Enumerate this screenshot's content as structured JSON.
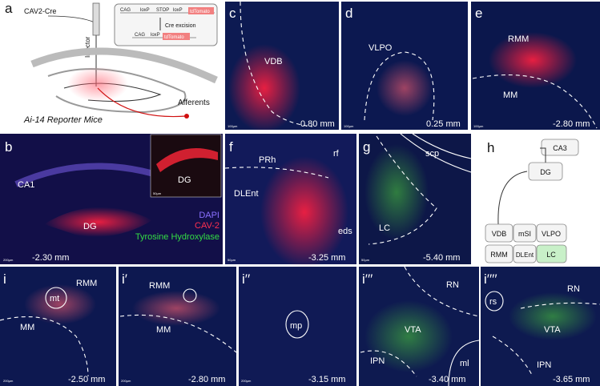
{
  "panels": [
    {
      "label": "a",
      "texts": [
        "CAV2-Cre",
        "Injector",
        "CAG",
        "loxP",
        "STOP",
        "loxP",
        "tdTomato",
        "Cre excision",
        "CAG",
        "loxP",
        "tdTomato",
        "Afferents",
        "Ai-14 Reporter Mice"
      ]
    },
    {
      "label": "b",
      "texts": [
        "CA1",
        "DG",
        "-2.30 mm",
        "DG",
        "50µm",
        "DAPI",
        "CAV-2",
        "Tyrosine Hydroxylase",
        "200µm"
      ]
    },
    {
      "label": "c",
      "texts": [
        "VDB",
        "0.80 mm",
        "100µm"
      ]
    },
    {
      "label": "d",
      "texts": [
        "VLPO",
        "0.25 mm",
        "100µm"
      ]
    },
    {
      "label": "e",
      "texts": [
        "RMM",
        "MM",
        "-2.80 mm",
        "100µm"
      ]
    },
    {
      "label": "f",
      "texts": [
        "PRh",
        "rf",
        "DLEnt",
        "eds",
        "-3.25 mm",
        "50µm"
      ]
    },
    {
      "label": "g",
      "texts": [
        "scp",
        "LC",
        "-5.40 mm",
        "50µm"
      ]
    },
    {
      "label": "h",
      "texts": [
        "CA3",
        "DG",
        "VDB",
        "mSI",
        "VLPO",
        "RMM",
        "DLEnt",
        "LC"
      ]
    },
    {
      "label": "i",
      "texts": [
        "mt",
        "RMM",
        "MM",
        "-2.50 mm",
        "200µm"
      ]
    },
    {
      "label": "i′",
      "texts": [
        "RMM",
        "MM",
        "-2.80 mm",
        "200µm"
      ]
    },
    {
      "label": "i′′",
      "texts": [
        "mp",
        "-3.15 mm",
        "200µm"
      ]
    },
    {
      "label": "i′′′",
      "texts": [
        "RN",
        "VTA",
        "IPN",
        "ml",
        "-3.40 mm"
      ]
    },
    {
      "label": "i′′′′",
      "texts": [
        "rs",
        "RN",
        "VTA",
        "IPN",
        "-3.65 mm"
      ]
    }
  ]
}
